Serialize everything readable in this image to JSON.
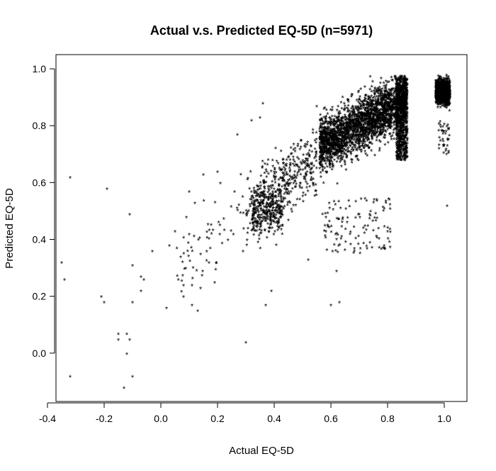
{
  "chart_data": {
    "type": "scatter",
    "title": "Actual v.s. Predicted EQ-5D (n=5971)",
    "xlabel": "Actual EQ-5D",
    "ylabel": "Predicted EQ-5D",
    "marker": "*",
    "marker_color": "#000000",
    "grid": false,
    "xlim": [
      -0.37,
      1.08
    ],
    "ylim": [
      -0.17,
      1.05
    ],
    "x_ticks": [
      -0.4,
      -0.2,
      0.0,
      0.2,
      0.4,
      0.6,
      0.8,
      1.0
    ],
    "x_tick_labels": [
      "-0.4",
      "-0.2",
      "0.0",
      "0.2",
      "0.4",
      "0.6",
      "0.8",
      "1.0"
    ],
    "y_ticks": [
      0.0,
      0.2,
      0.4,
      0.6,
      0.8,
      1.0
    ],
    "y_tick_labels": [
      "0.0",
      "0.2",
      "0.4",
      "0.6",
      "0.8",
      "1.0"
    ],
    "n": 5971,
    "series": [
      {
        "values_sample": [
          [
            -0.35,
            0.32
          ],
          [
            -0.34,
            0.26
          ],
          [
            -0.32,
            0.62
          ],
          [
            -0.32,
            -0.08
          ],
          [
            -0.21,
            0.2
          ],
          [
            -0.2,
            0.18
          ],
          [
            -0.19,
            0.58
          ],
          [
            -0.15,
            0.05
          ],
          [
            -0.15,
            0.07
          ],
          [
            -0.13,
            -0.12
          ],
          [
            -0.12,
            0.07
          ],
          [
            -0.12,
            0.0
          ],
          [
            -0.11,
            0.05
          ],
          [
            -0.11,
            0.49
          ],
          [
            -0.1,
            0.31
          ],
          [
            -0.1,
            0.18
          ],
          [
            -0.1,
            -0.08
          ],
          [
            -0.07,
            0.27
          ],
          [
            -0.06,
            0.26
          ],
          [
            -0.07,
            0.22
          ],
          [
            -0.03,
            0.36
          ],
          [
            0.02,
            0.16
          ],
          [
            0.03,
            0.38
          ],
          [
            0.05,
            0.43
          ],
          [
            0.07,
            0.34
          ],
          [
            0.08,
            0.24
          ],
          [
            0.08,
            0.2
          ],
          [
            0.09,
            0.48
          ],
          [
            0.1,
            0.57
          ],
          [
            0.1,
            0.42
          ],
          [
            0.11,
            0.17
          ],
          [
            0.11,
            0.24
          ],
          [
            0.12,
            0.53
          ],
          [
            0.13,
            0.15
          ],
          [
            0.14,
            0.23
          ],
          [
            0.15,
            0.63
          ],
          [
            0.17,
            0.32
          ],
          [
            0.19,
            0.25
          ],
          [
            0.2,
            0.64
          ],
          [
            0.21,
            0.6
          ],
          [
            0.26,
            0.57
          ],
          [
            0.27,
            0.77
          ],
          [
            0.29,
            0.36
          ],
          [
            0.3,
            0.04
          ],
          [
            0.32,
            0.82
          ],
          [
            0.35,
            0.83
          ],
          [
            0.37,
            0.17
          ],
          [
            0.36,
            0.88
          ],
          [
            0.39,
            0.22
          ],
          [
            0.45,
            0.47
          ],
          [
            0.52,
            0.33
          ],
          [
            0.55,
            0.87
          ],
          [
            0.6,
            0.17
          ],
          [
            0.62,
            0.29
          ],
          [
            0.63,
            0.18
          ],
          [
            0.72,
            0.45
          ],
          [
            0.8,
            0.43
          ],
          [
            1.01,
            0.52
          ]
        ]
      }
    ]
  }
}
